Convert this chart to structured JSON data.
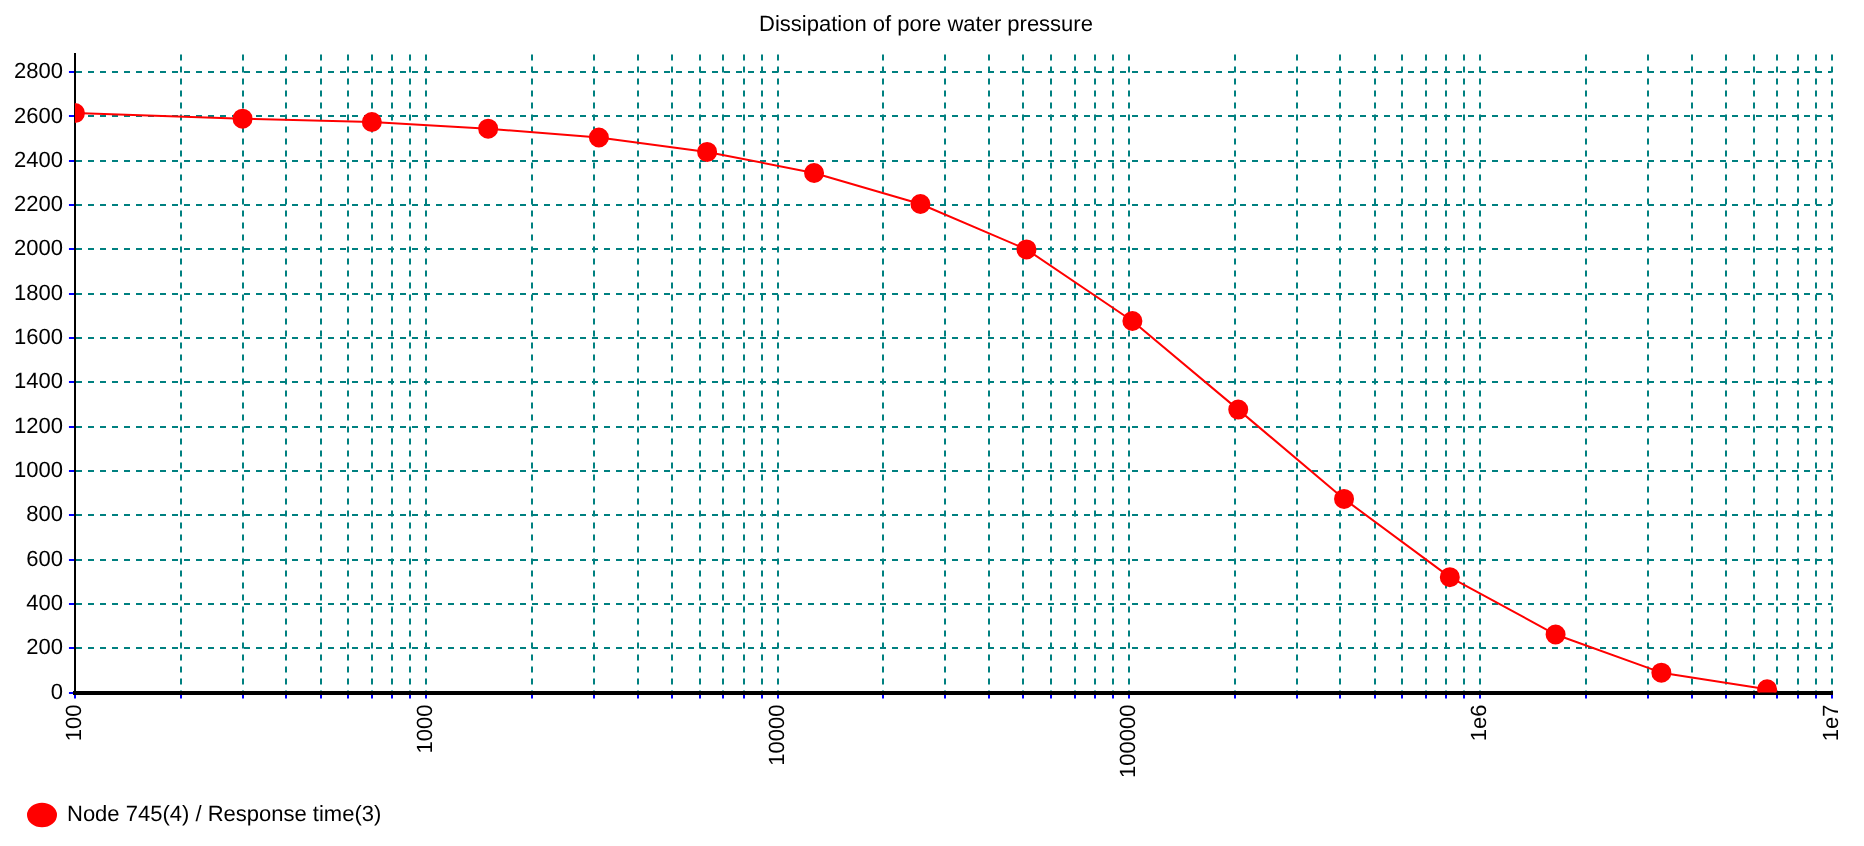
{
  "chart_data": {
    "type": "line",
    "title": "Dissipation of pore water pressure",
    "log": "x",
    "x": [
      100,
      300,
      700,
      1500,
      3100,
      6300,
      12700,
      25500,
      51100,
      102300,
      204700,
      409500,
      819100,
      1638300,
      3276700,
      6553500
    ],
    "series": [
      {
        "name": "Node 745(4) / Response time(3)",
        "color": "#ff0000",
        "values": [
          2615,
          2590,
          2575,
          2545,
          2505,
          2440,
          2345,
          2205,
          2000,
          1677,
          1277,
          874,
          521,
          262,
          90,
          15
        ]
      }
    ],
    "xlim": [
      100,
      10000000
    ],
    "xticks": [
      100,
      {
        "value": 200,
        "label": null
      },
      {
        "value": 300,
        "label": null
      },
      {
        "value": 400,
        "label": null
      },
      {
        "value": 500,
        "label": null
      },
      {
        "value": 600,
        "label": null
      },
      {
        "value": 700,
        "label": null
      },
      {
        "value": 800,
        "label": null
      },
      {
        "value": 900,
        "label": null
      },
      1000,
      {
        "value": 2000,
        "label": null
      },
      {
        "value": 3000,
        "label": null
      },
      {
        "value": 4000,
        "label": null
      },
      {
        "value": 5000,
        "label": null
      },
      {
        "value": 6000,
        "label": null
      },
      {
        "value": 7000,
        "label": null
      },
      {
        "value": 8000,
        "label": null
      },
      {
        "value": 9000,
        "label": null
      },
      10000,
      {
        "value": 20000,
        "label": null
      },
      {
        "value": 30000,
        "label": null
      },
      {
        "value": 40000,
        "label": null
      },
      {
        "value": 50000,
        "label": null
      },
      {
        "value": 60000,
        "label": null
      },
      {
        "value": 70000,
        "label": null
      },
      {
        "value": 80000,
        "label": null
      },
      {
        "value": 90000,
        "label": null
      },
      100000,
      {
        "value": 200000,
        "label": null
      },
      {
        "value": 300000,
        "label": null
      },
      {
        "value": 400000,
        "label": null
      },
      {
        "value": 500000,
        "label": null
      },
      {
        "value": 600000,
        "label": null
      },
      {
        "value": 700000,
        "label": null
      },
      {
        "value": 800000,
        "label": null
      },
      {
        "value": 900000,
        "label": null
      },
      {
        "value": 1000000,
        "label": "1e6"
      },
      {
        "value": 2000000,
        "label": null
      },
      {
        "value": 3000000,
        "label": null
      },
      {
        "value": 4000000,
        "label": null
      },
      {
        "value": 5000000,
        "label": null
      },
      {
        "value": 6000000,
        "label": null
      },
      {
        "value": 7000000,
        "label": null
      },
      {
        "value": 8000000,
        "label": null
      },
      {
        "value": 9000000,
        "label": null
      },
      {
        "value": 10000000,
        "label": "1e7"
      }
    ],
    "ylim": [
      0,
      2880
    ],
    "yticks": [
      0,
      200,
      400,
      600,
      800,
      1000,
      1200,
      1400,
      1600,
      1800,
      2000,
      2200,
      2400,
      2600,
      2800
    ],
    "grid": true,
    "legend": "bottom left",
    "marker": "circle",
    "line_style": "solid"
  }
}
